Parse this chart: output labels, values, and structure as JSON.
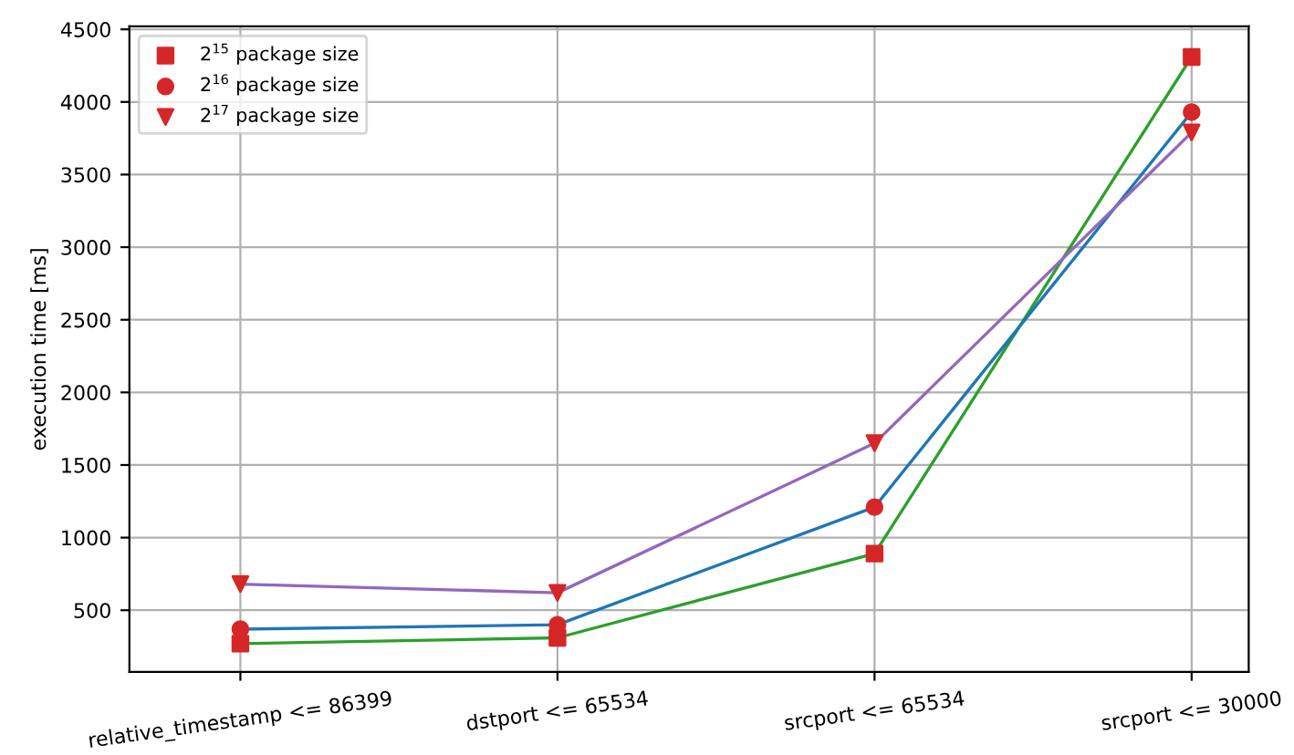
{
  "chart_data": {
    "type": "line",
    "ylabel": "execution time [ms]",
    "categories": [
      "relative_timestamp <= 86399",
      "dstport <= 65534",
      "srcport <= 65534",
      "srcport <= 30000"
    ],
    "series": [
      {
        "name": "2$^{15}$ package size",
        "color": "#2ca02c",
        "colors": [
          "#d62728",
          "#d62728",
          "#d62728",
          "#d62728"
        ],
        "marker": "square",
        "values": [
          270,
          310,
          890,
          4310
        ]
      },
      {
        "name": "2$^{16}$ package size",
        "color": "#1f77b4",
        "colors": [
          "#d62728",
          "#d62728",
          "#d62728",
          "#d62728"
        ],
        "marker": "circle",
        "values": [
          370,
          400,
          1210,
          3930
        ]
      },
      {
        "name": "2$^{17}$ package size",
        "color": "#9467bd",
        "colors": [
          "#d62728",
          "#d62728",
          "#d62728",
          "#d62728"
        ],
        "marker": "triangle",
        "values": [
          680,
          620,
          1650,
          3790
        ]
      }
    ],
    "ylim": [
      75,
      4520
    ],
    "yticks": [
      500,
      1000,
      1500,
      2000,
      2500,
      3000,
      3500,
      4000,
      4500
    ],
    "grid": true,
    "legend": "top left"
  }
}
